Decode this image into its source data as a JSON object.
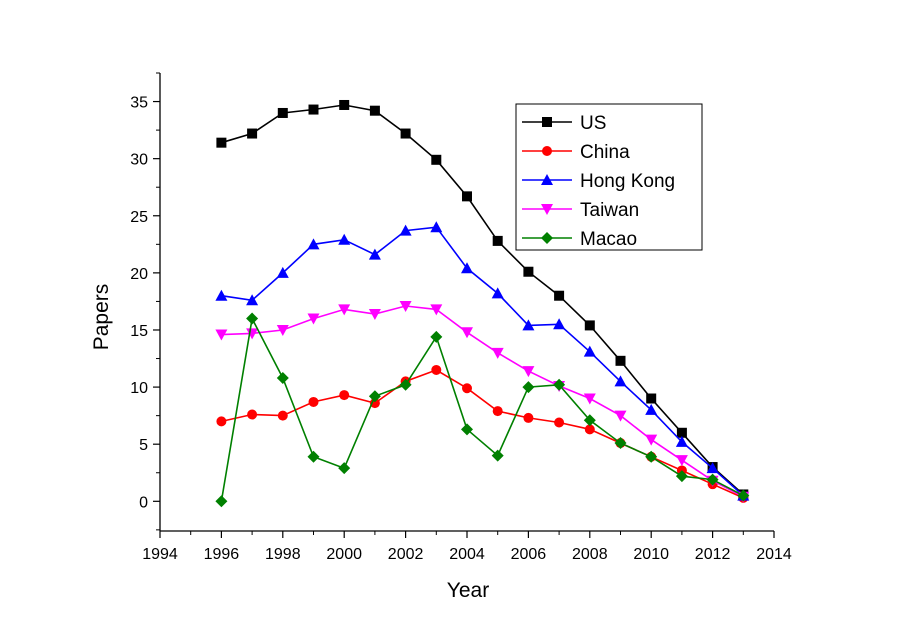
{
  "chart_data": {
    "type": "line",
    "title": "",
    "xlabel": "Year",
    "ylabel": "Papers",
    "xlim": [
      1994,
      2014
    ],
    "ylim": [
      -2.6,
      37.5
    ],
    "xticks": [
      1994,
      1996,
      1998,
      2000,
      2002,
      2004,
      2006,
      2008,
      2010,
      2012,
      2014
    ],
    "yticks": [
      0,
      5,
      10,
      15,
      20,
      25,
      30,
      35
    ],
    "x": [
      1996,
      1997,
      1998,
      1999,
      2000,
      2001,
      2002,
      2003,
      2004,
      2005,
      2006,
      2007,
      2008,
      2009,
      2010,
      2011,
      2012,
      2013
    ],
    "legend_position": "top-right",
    "grid": false,
    "series": [
      {
        "name": "US",
        "color": "#000000",
        "marker": "square",
        "values": [
          31.4,
          32.2,
          34.0,
          34.3,
          34.7,
          34.2,
          32.2,
          29.9,
          26.7,
          22.8,
          20.1,
          18.0,
          15.4,
          12.3,
          9.0,
          6.0,
          3.0,
          0.6
        ]
      },
      {
        "name": "China",
        "color": "#ff0000",
        "marker": "circle",
        "values": [
          7.0,
          7.6,
          7.5,
          8.7,
          9.3,
          8.6,
          10.5,
          11.5,
          9.9,
          7.9,
          7.3,
          6.9,
          6.3,
          5.1,
          3.9,
          2.7,
          1.5,
          0.3
        ]
      },
      {
        "name": "Hong Kong",
        "color": "#0000ff",
        "marker": "triangle-up",
        "values": [
          18.0,
          17.6,
          20.0,
          22.5,
          22.9,
          21.6,
          23.7,
          24.0,
          20.4,
          18.2,
          15.4,
          15.5,
          13.1,
          10.5,
          8.0,
          5.2,
          2.9,
          0.5
        ]
      },
      {
        "name": "Taiwan",
        "color": "#ff00ff",
        "marker": "triangle-down",
        "values": [
          14.6,
          14.7,
          15.0,
          16.0,
          16.8,
          16.4,
          17.1,
          16.8,
          14.8,
          13.0,
          11.4,
          10.1,
          9.0,
          7.5,
          5.4,
          3.6,
          1.8,
          0.4
        ]
      },
      {
        "name": "Macao",
        "color": "#008000",
        "marker": "diamond",
        "values": [
          0.0,
          16.0,
          10.8,
          3.9,
          2.9,
          9.2,
          10.2,
          14.4,
          6.3,
          4.0,
          10.0,
          10.2,
          7.1,
          5.1,
          3.9,
          2.2,
          1.9,
          0.5
        ]
      }
    ]
  }
}
